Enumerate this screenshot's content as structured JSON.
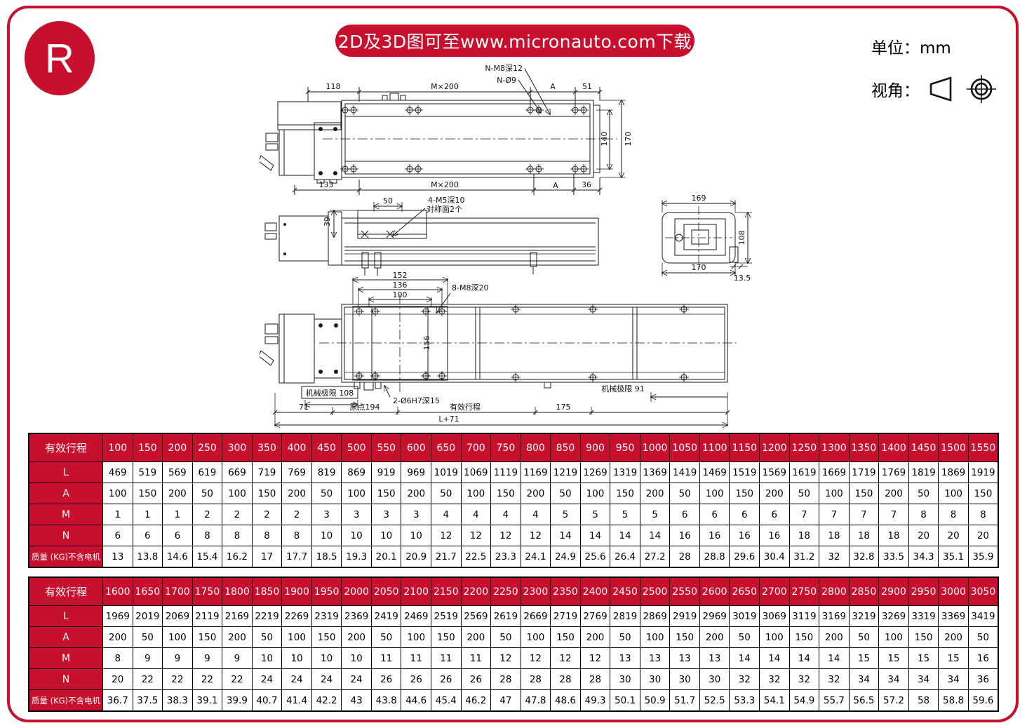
{
  "page": {
    "logo_letter": "R",
    "banner_text": "2D及3D图可至www.micronauto.com下载",
    "unit_text": "单位：mm",
    "view_angle_text": "视角：",
    "accent_red": "#C8102E",
    "view_icons": [
      "cone-frustum-projection-icon",
      "concentric-circles-projection-icon"
    ]
  },
  "drawing": {
    "top_view": {
      "dim_118": "118",
      "dim_m200": "M×200",
      "dim_a": "A",
      "dim_51": "51",
      "dim_133": "133",
      "dim_36": "36",
      "dim_140": "140",
      "dim_170": "170",
      "label_n_m8": "N-M8深12",
      "label_n_d9": "N-Ø9"
    },
    "side_view": {
      "dim_39": "39",
      "dim_50": "50",
      "label_m5": "4-M5深10",
      "label_sym": "对称面2个"
    },
    "plan_view": {
      "dim_152": "152",
      "dim_136": "136",
      "dim_100": "100",
      "label_m8": "8-M8深20",
      "dim_156": "156",
      "limit_left": "机械极限 108",
      "label_pin": "2-Ø6H7深15",
      "limit_right": "机械极限 91",
      "dim_71": "71",
      "origin_label": "原点194",
      "stroke_label": "有效行程",
      "dim_175": "175",
      "total_label": "L+71"
    },
    "end_view": {
      "dim_169": "169",
      "dim_108": "108",
      "dim_170": "170",
      "dim_13_5": "13.5"
    }
  },
  "tables": [
    {
      "header_label": "有效行程",
      "columns": [
        "100",
        "150",
        "200",
        "250",
        "300",
        "350",
        "400",
        "450",
        "500",
        "550",
        "600",
        "650",
        "700",
        "750",
        "800",
        "850",
        "900",
        "950",
        "1000",
        "1050",
        "1100",
        "1150",
        "1200",
        "1250",
        "1300",
        "1350",
        "1400",
        "1450",
        "1500",
        "1550"
      ],
      "rows": [
        {
          "label": "L",
          "values": [
            "469",
            "519",
            "569",
            "619",
            "669",
            "719",
            "769",
            "819",
            "869",
            "919",
            "969",
            "1019",
            "1069",
            "1119",
            "1169",
            "1219",
            "1269",
            "1319",
            "1369",
            "1419",
            "1469",
            "1519",
            "1569",
            "1619",
            "1669",
            "1719",
            "1769",
            "1819",
            "1869",
            "1919"
          ]
        },
        {
          "label": "A",
          "values": [
            "100",
            "150",
            "200",
            "50",
            "100",
            "150",
            "200",
            "50",
            "100",
            "150",
            "200",
            "50",
            "100",
            "150",
            "200",
            "50",
            "100",
            "150",
            "200",
            "50",
            "100",
            "150",
            "200",
            "50",
            "100",
            "150",
            "200",
            "50",
            "100",
            "150"
          ]
        },
        {
          "label": "M",
          "values": [
            "1",
            "1",
            "1",
            "2",
            "2",
            "2",
            "2",
            "3",
            "3",
            "3",
            "3",
            "4",
            "4",
            "4",
            "4",
            "5",
            "5",
            "5",
            "5",
            "6",
            "6",
            "6",
            "6",
            "7",
            "7",
            "7",
            "7",
            "8",
            "8",
            "8"
          ]
        },
        {
          "label": "N",
          "values": [
            "6",
            "6",
            "6",
            "8",
            "8",
            "8",
            "8",
            "10",
            "10",
            "10",
            "10",
            "12",
            "12",
            "12",
            "12",
            "14",
            "14",
            "14",
            "14",
            "16",
            "16",
            "16",
            "16",
            "18",
            "18",
            "18",
            "18",
            "20",
            "20",
            "20"
          ]
        },
        {
          "label": "质量 (KG)不含电机",
          "values": [
            "13",
            "13.8",
            "14.6",
            "15.4",
            "16.2",
            "17",
            "17.7",
            "18.5",
            "19.3",
            "20.1",
            "20.9",
            "21.7",
            "22.5",
            "23.3",
            "24.1",
            "24.9",
            "25.6",
            "26.4",
            "27.2",
            "28",
            "28.8",
            "29.6",
            "30.4",
            "31.2",
            "32",
            "32.8",
            "33.5",
            "34.3",
            "35.1",
            "35.9"
          ]
        }
      ]
    },
    {
      "header_label": "有效行程",
      "columns": [
        "1600",
        "1650",
        "1700",
        "1750",
        "1800",
        "1850",
        "1900",
        "1950",
        "2000",
        "2050",
        "2100",
        "2150",
        "2200",
        "2250",
        "2300",
        "2350",
        "2400",
        "2450",
        "2500",
        "2550",
        "2600",
        "2650",
        "2700",
        "2750",
        "2800",
        "2850",
        "2900",
        "2950",
        "3000",
        "3050"
      ],
      "rows": [
        {
          "label": "L",
          "values": [
            "1969",
            "2019",
            "2069",
            "2119",
            "2169",
            "2219",
            "2269",
            "2319",
            "2369",
            "2419",
            "2469",
            "2519",
            "2569",
            "2619",
            "2669",
            "2719",
            "2769",
            "2819",
            "2869",
            "2919",
            "2969",
            "3019",
            "3069",
            "3119",
            "3169",
            "3219",
            "3269",
            "3319",
            "3369",
            "3419"
          ]
        },
        {
          "label": "A",
          "values": [
            "200",
            "50",
            "100",
            "150",
            "200",
            "50",
            "100",
            "150",
            "200",
            "50",
            "100",
            "150",
            "200",
            "50",
            "100",
            "150",
            "200",
            "50",
            "100",
            "150",
            "200",
            "50",
            "100",
            "150",
            "200",
            "50",
            "100",
            "150",
            "200",
            "50"
          ]
        },
        {
          "label": "M",
          "values": [
            "8",
            "9",
            "9",
            "9",
            "9",
            "10",
            "10",
            "10",
            "10",
            "11",
            "11",
            "11",
            "11",
            "12",
            "12",
            "12",
            "12",
            "13",
            "13",
            "13",
            "13",
            "14",
            "14",
            "14",
            "14",
            "15",
            "15",
            "15",
            "15",
            "16"
          ]
        },
        {
          "label": "N",
          "values": [
            "20",
            "22",
            "22",
            "22",
            "22",
            "24",
            "24",
            "24",
            "24",
            "26",
            "26",
            "26",
            "26",
            "28",
            "28",
            "28",
            "28",
            "30",
            "30",
            "30",
            "30",
            "32",
            "32",
            "32",
            "32",
            "34",
            "34",
            "34",
            "34",
            "36"
          ]
        },
        {
          "label": "质量 (KG)不含电机",
          "values": [
            "36.7",
            "37.5",
            "38.3",
            "39.1",
            "39.9",
            "40.7",
            "41.4",
            "42.2",
            "43",
            "43.8",
            "44.6",
            "45.4",
            "46.2",
            "47",
            "47.8",
            "48.6",
            "49.3",
            "50.1",
            "50.9",
            "51.7",
            "52.5",
            "53.3",
            "54.1",
            "54.9",
            "55.7",
            "56.5",
            "57.2",
            "58",
            "58.8",
            "59.6"
          ]
        }
      ]
    }
  ]
}
